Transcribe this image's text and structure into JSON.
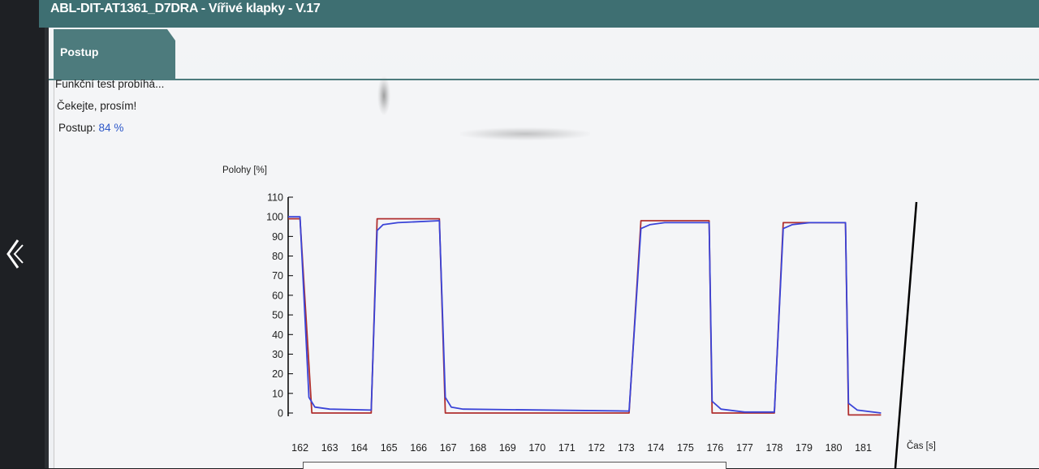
{
  "window": {
    "title": "ABL-DIT-AT1361_D7DRA - Vířivé klapky - V.17"
  },
  "tabs": [
    {
      "label": "Postup"
    }
  ],
  "status": {
    "line1": "Funkční test probíhá...",
    "line2": "Čekejte, prosím!",
    "progress_label": "Postup:",
    "progress_value": "84 %"
  },
  "chart_data": {
    "type": "line",
    "ylabel": "Polohy [%]",
    "xlabel": "Čas [s]",
    "ylim": [
      0,
      110
    ],
    "xlim": [
      161.6,
      182.3
    ],
    "yticks": [
      0,
      10,
      20,
      30,
      40,
      50,
      60,
      70,
      80,
      90,
      100,
      110
    ],
    "xticks": [
      162,
      163,
      164,
      165,
      166,
      167,
      168,
      169,
      170,
      171,
      172,
      173,
      174,
      175,
      176,
      177,
      178,
      179,
      180,
      181
    ],
    "colors": {
      "setpoint": "#b03030",
      "actual": "#3a44d8"
    },
    "series": [
      {
        "color": "#b03030",
        "points": [
          [
            161.6,
            99
          ],
          [
            162.0,
            99
          ],
          [
            162.4,
            0
          ],
          [
            164.4,
            0
          ],
          [
            164.6,
            99
          ],
          [
            166.7,
            99
          ],
          [
            166.9,
            0
          ],
          [
            173.1,
            0
          ],
          [
            173.5,
            98
          ],
          [
            175.8,
            98
          ],
          [
            175.9,
            0
          ],
          [
            178.0,
            0
          ],
          [
            178.3,
            97
          ],
          [
            180.4,
            97
          ],
          [
            180.5,
            -1
          ],
          [
            181.6,
            -1
          ]
        ]
      },
      {
        "color": "#3a44d8",
        "points": [
          [
            161.6,
            100
          ],
          [
            162.0,
            100
          ],
          [
            162.3,
            8
          ],
          [
            162.5,
            3
          ],
          [
            163.0,
            2
          ],
          [
            164.4,
            1.5
          ],
          [
            164.6,
            93
          ],
          [
            164.8,
            96
          ],
          [
            165.3,
            97
          ],
          [
            166.7,
            98
          ],
          [
            166.9,
            8
          ],
          [
            167.1,
            3
          ],
          [
            167.5,
            2
          ],
          [
            173.1,
            1
          ],
          [
            173.5,
            94
          ],
          [
            173.8,
            96
          ],
          [
            174.3,
            97
          ],
          [
            175.8,
            97
          ],
          [
            175.9,
            6
          ],
          [
            176.2,
            2
          ],
          [
            177.0,
            0.5
          ],
          [
            178.0,
            0.5
          ],
          [
            178.3,
            94
          ],
          [
            178.6,
            96
          ],
          [
            179.2,
            97
          ],
          [
            180.4,
            97
          ],
          [
            180.5,
            5
          ],
          [
            180.8,
            1.5
          ],
          [
            181.6,
            0
          ]
        ]
      }
    ]
  }
}
